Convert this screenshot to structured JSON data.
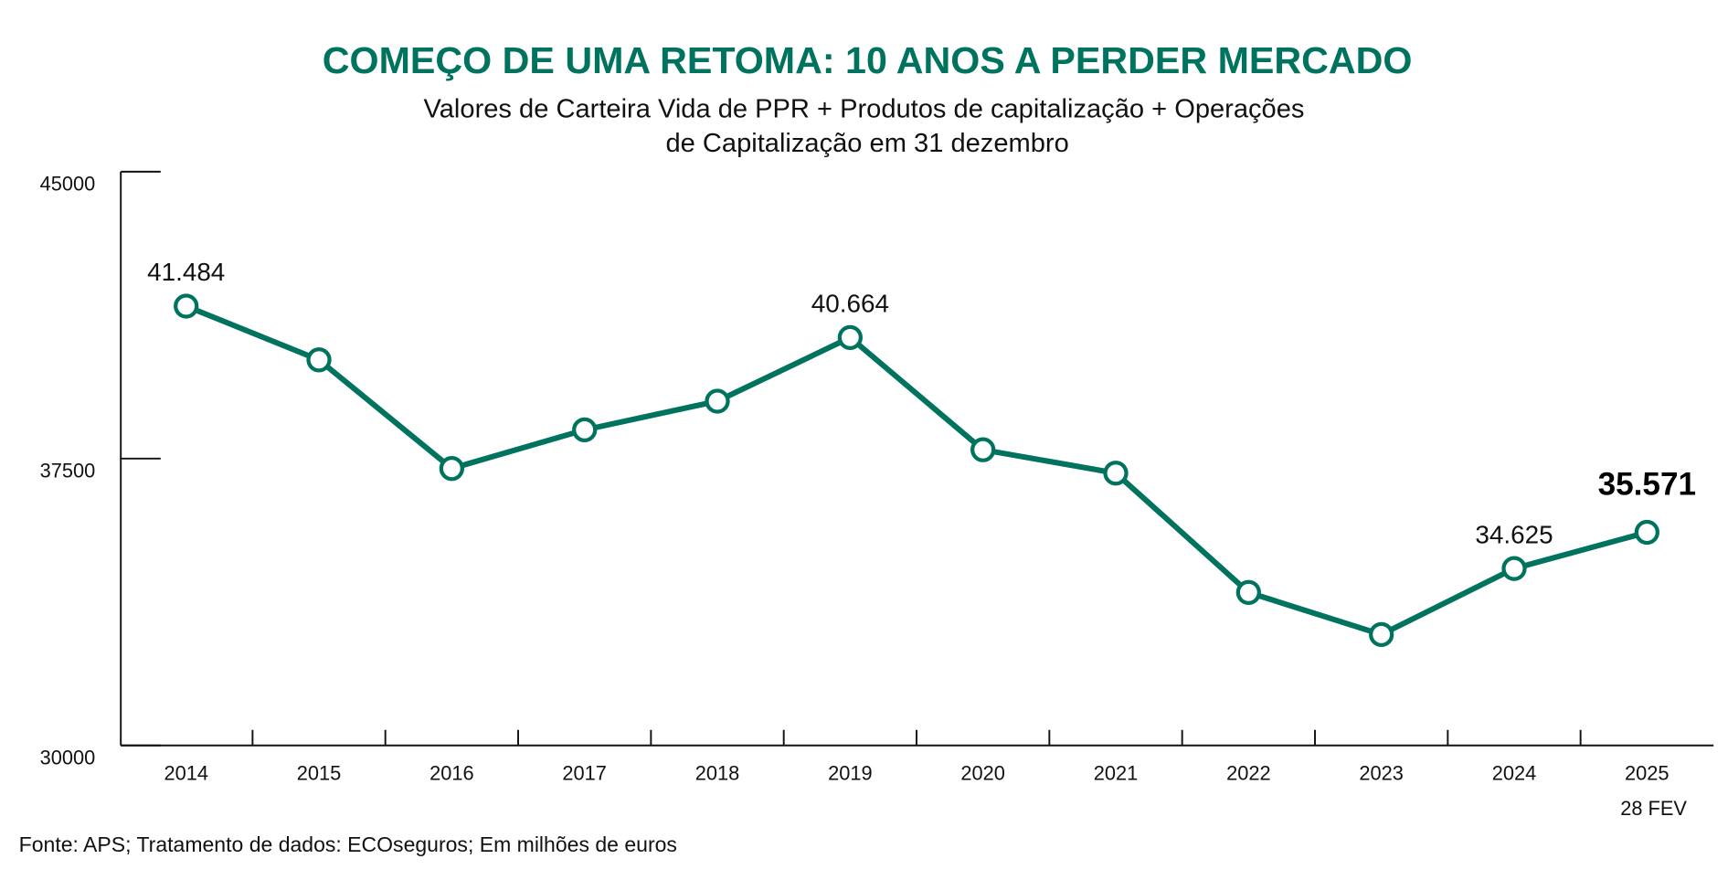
{
  "chart_data": {
    "type": "line",
    "title": "COMEÇO DE UMA RETOMA: 10 ANOS A PERDER MERCADO",
    "subtitle_lines": [
      "Valores de Carteira Vida de PPR + Produtos de capitalização + Operações",
      "de Capitalização em 31 dezembro"
    ],
    "xlabel": "",
    "ylabel": "",
    "categories": [
      "2014",
      "2015",
      "2016",
      "2017",
      "2018",
      "2019",
      "2020",
      "2021",
      "2022",
      "2023",
      "2024",
      "2025"
    ],
    "x_sublabel": {
      "category": "2025",
      "text": "28 FEV"
    },
    "series": [
      {
        "name": "Carteira Vida (milhões de euros)",
        "values": [
          41484,
          40080,
          37240,
          38250,
          39000,
          40664,
          37730,
          37120,
          34000,
          32900,
          34625,
          35571
        ]
      }
    ],
    "data_labels": [
      {
        "index": 0,
        "text": "41.484",
        "bold": false
      },
      {
        "index": 5,
        "text": "40.664",
        "bold": false
      },
      {
        "index": 10,
        "text": "34.625",
        "bold": false
      },
      {
        "index": 11,
        "text": "35.571",
        "bold": true
      }
    ],
    "ylim": [
      30000,
      45000
    ],
    "yticks": [
      "45000",
      "37500",
      "30000"
    ],
    "ytick_values": [
      45000,
      37500,
      30000
    ],
    "grid": false,
    "legend": "none",
    "colors": {
      "line": "#00735f",
      "marker_fill": "#ffffff",
      "title": "#00735f"
    },
    "footer": "Fonte: APS; Tratamento de dados: ECOseguros; Em milhões de euros"
  }
}
